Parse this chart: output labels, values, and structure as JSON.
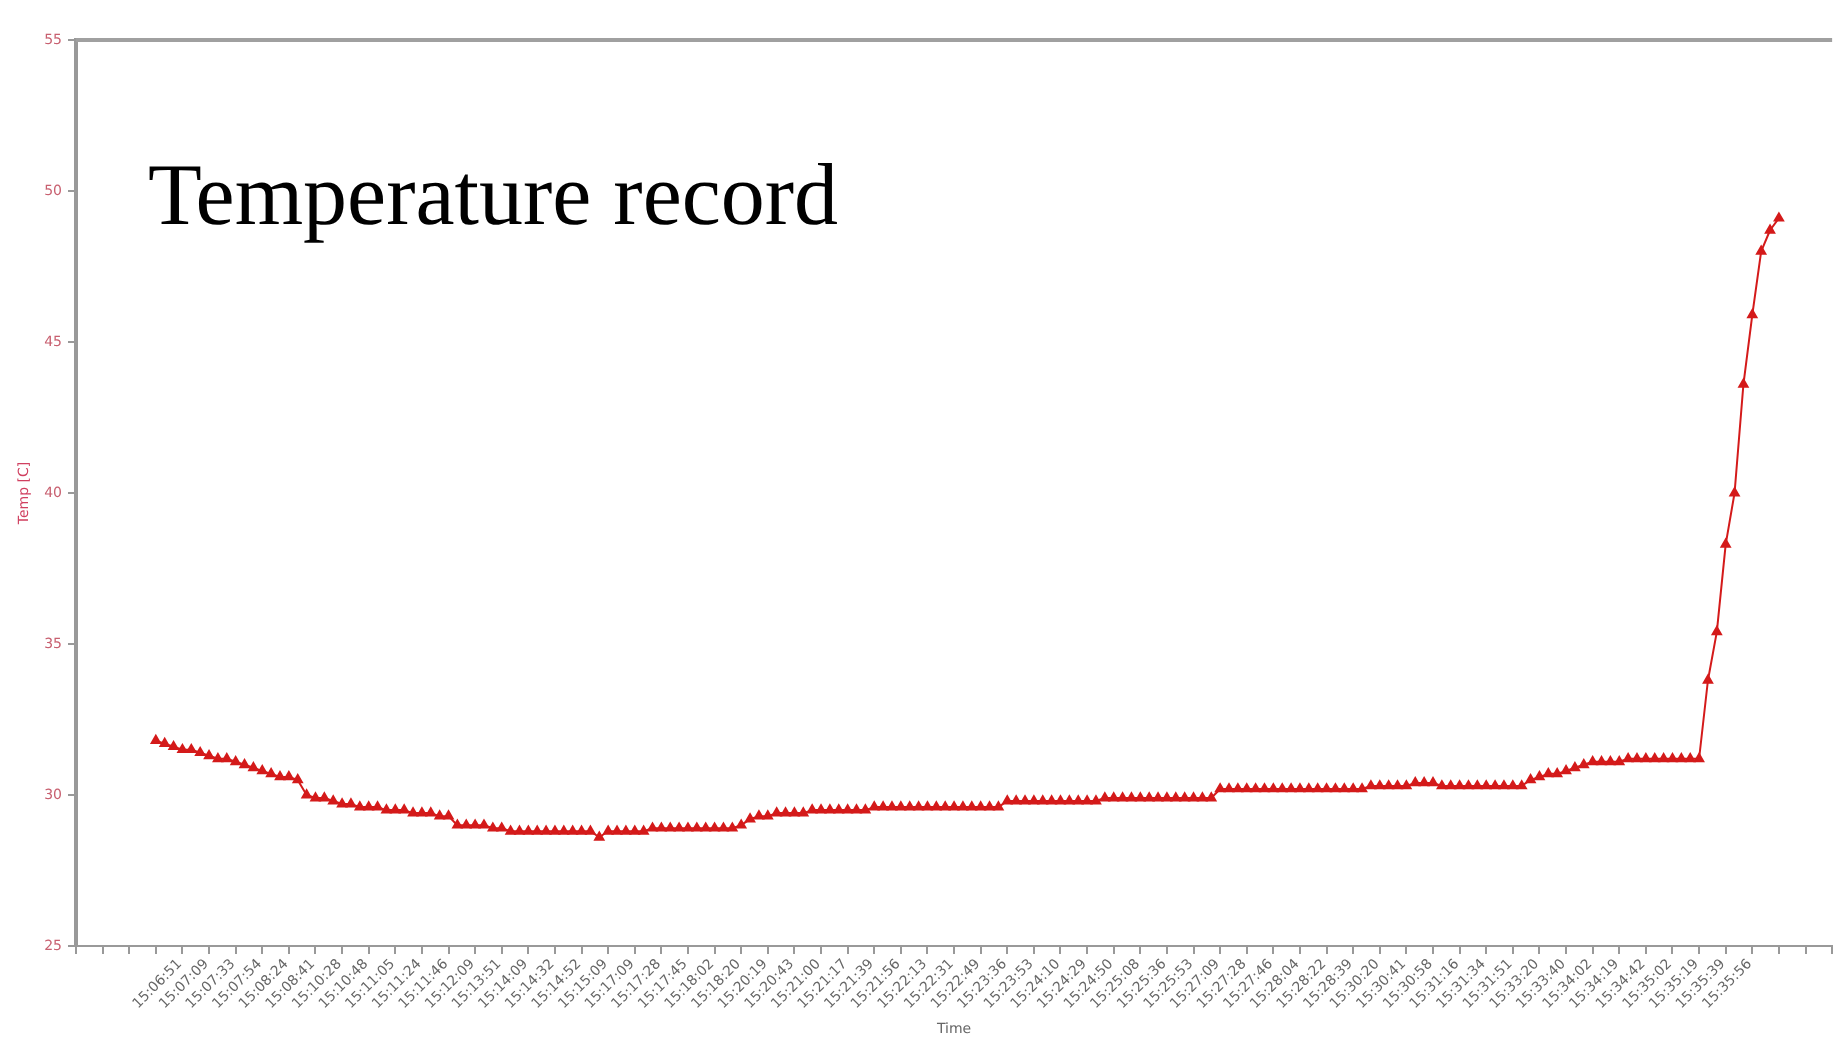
{
  "chart_data": {
    "type": "line",
    "title": "Temperature record",
    "xlabel": "Time",
    "ylabel": "Temp [C]",
    "categories": [
      null,
      null,
      null,
      null,
      null,
      null,
      null,
      null,
      null,
      "15:06:51",
      null,
      null,
      "15:07:09",
      null,
      null,
      "15:07:33",
      null,
      null,
      "15:07:54",
      null,
      null,
      "15:08:24",
      null,
      null,
      "15:08:41",
      null,
      null,
      "15:10:28",
      null,
      null,
      "15:10:48",
      null,
      null,
      "15:11:05",
      null,
      null,
      "15:11:24",
      null,
      null,
      "15:11:46",
      null,
      null,
      "15:12:09",
      null,
      null,
      "15:13:51",
      null,
      null,
      "15:14:09",
      null,
      null,
      "15:14:32",
      null,
      null,
      "15:14:52",
      null,
      null,
      "15:15:09",
      null,
      null,
      "15:17:09",
      null,
      null,
      "15:17:28",
      null,
      null,
      "15:17:45",
      null,
      null,
      "15:18:02",
      null,
      null,
      "15:18:20",
      null,
      null,
      "15:20:19",
      null,
      null,
      "15:20:43",
      null,
      null,
      "15:21:00",
      null,
      null,
      "15:21:17",
      null,
      null,
      "15:21:39",
      null,
      null,
      "15:21:56",
      null,
      null,
      "15:22:13",
      null,
      null,
      "15:22:31",
      null,
      null,
      "15:22:49",
      null,
      null,
      "15:23:36",
      null,
      null,
      "15:23:53",
      null,
      null,
      "15:24:10",
      null,
      null,
      "15:24:29",
      null,
      null,
      "15:24:50",
      null,
      null,
      "15:25:08",
      null,
      null,
      "15:25:36",
      null,
      null,
      "15:25:53",
      null,
      null,
      "15:27:09",
      null,
      null,
      "15:27:28",
      null,
      null,
      "15:27:46",
      null,
      null,
      "15:28:04",
      null,
      null,
      "15:28:22",
      null,
      null,
      "15:28:39",
      null,
      null,
      "15:30:20",
      null,
      null,
      "15:30:41",
      null,
      null,
      "15:30:58",
      null,
      null,
      "15:31:16",
      null,
      null,
      "15:31:34",
      null,
      null,
      "15:31:51",
      null,
      null,
      "15:33:20",
      null,
      null,
      "15:33:40",
      null,
      null,
      "15:34:02",
      null,
      null,
      "15:34:19",
      null,
      null,
      "15:34:42",
      null,
      null,
      "15:35:02",
      null,
      null,
      "15:35:19",
      null,
      null,
      "15:35:39",
      null,
      null,
      "15:35:56",
      null,
      null,
      null,
      null,
      null,
      null,
      null,
      null,
      null,
      null,
      null,
      null
    ],
    "values": [
      null,
      null,
      null,
      null,
      null,
      null,
      null,
      null,
      null,
      31.8,
      31.7,
      31.6,
      31.5,
      31.5,
      31.4,
      31.3,
      31.2,
      31.2,
      31.1,
      31.0,
      30.9,
      30.8,
      30.7,
      30.6,
      30.6,
      30.5,
      30.0,
      29.9,
      29.9,
      29.8,
      29.7,
      29.7,
      29.6,
      29.6,
      29.6,
      29.5,
      29.5,
      29.5,
      29.4,
      29.4,
      29.4,
      29.3,
      29.3,
      29.0,
      29.0,
      29.0,
      29.0,
      28.9,
      28.9,
      28.8,
      28.8,
      28.8,
      28.8,
      28.8,
      28.8,
      28.8,
      28.8,
      28.8,
      28.8,
      28.6,
      28.8,
      28.8,
      28.8,
      28.8,
      28.8,
      28.9,
      28.9,
      28.9,
      28.9,
      28.9,
      28.9,
      28.9,
      28.9,
      28.9,
      28.9,
      29.0,
      29.2,
      29.3,
      29.3,
      29.4,
      29.4,
      29.4,
      29.4,
      29.5,
      29.5,
      29.5,
      29.5,
      29.5,
      29.5,
      29.5,
      29.6,
      29.6,
      29.6,
      29.6,
      29.6,
      29.6,
      29.6,
      29.6,
      29.6,
      29.6,
      29.6,
      29.6,
      29.6,
      29.6,
      29.6,
      29.8,
      29.8,
      29.8,
      29.8,
      29.8,
      29.8,
      29.8,
      29.8,
      29.8,
      29.8,
      29.8,
      29.9,
      29.9,
      29.9,
      29.9,
      29.9,
      29.9,
      29.9,
      29.9,
      29.9,
      29.9,
      29.9,
      29.9,
      29.9,
      30.2,
      30.2,
      30.2,
      30.2,
      30.2,
      30.2,
      30.2,
      30.2,
      30.2,
      30.2,
      30.2,
      30.2,
      30.2,
      30.2,
      30.2,
      30.2,
      30.2,
      30.3,
      30.3,
      30.3,
      30.3,
      30.3,
      30.4,
      30.4,
      30.4,
      30.3,
      30.3,
      30.3,
      30.3,
      30.3,
      30.3,
      30.3,
      30.3,
      30.3,
      30.3,
      30.5,
      30.6,
      30.7,
      30.7,
      30.8,
      30.9,
      31.0,
      31.1,
      31.1,
      31.1,
      31.1,
      31.2,
      31.2,
      31.2,
      31.2,
      31.2,
      31.2,
      31.2,
      31.2,
      31.2,
      33.8,
      35.4,
      38.3,
      40.0,
      43.6,
      45.9,
      48.0,
      48.7,
      49.1,
      null,
      null,
      null,
      null,
      null,
      null
    ],
    "color": "#d41a1a",
    "ylim": [
      25,
      55
    ],
    "yticks": [
      25,
      30,
      35,
      40,
      45,
      50,
      55
    ],
    "marker": "triangle",
    "line_style": "solid",
    "legend": false,
    "grid": false
  }
}
